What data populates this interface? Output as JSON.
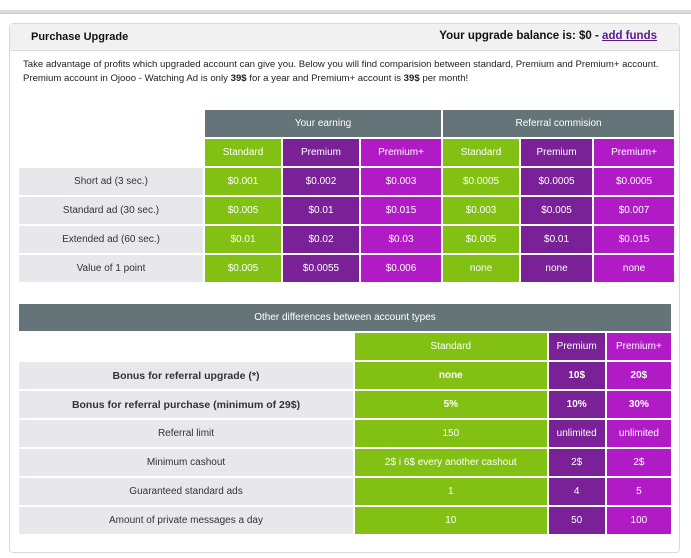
{
  "header": {
    "title": "Purchase Upgrade",
    "balance_label": "Your upgrade balance is: $0 -",
    "add_funds": "add funds"
  },
  "intro": {
    "text_a": "Take advantage of profits which upgraded account can give you. Below you will find comparision between standard, Premium and Premium+ account. Premium account in Ojooo - Watching Ad is only ",
    "price_premium": "39$",
    "text_b": " for a year and Premium+ account is ",
    "price_premium_plus": "39$",
    "text_c": " per month!"
  },
  "earnings_table": {
    "group_earning": "Your earning",
    "group_referral": "Referral commision",
    "columns": [
      "Standard",
      "Premium",
      "Premium+",
      "Standard",
      "Premium",
      "Premium+"
    ],
    "rows": [
      {
        "label": "Short ad (3 sec.)",
        "values": [
          "$0.001",
          "$0.002",
          "$0.003",
          "$0.0005",
          "$0.0005",
          "$0.0005"
        ]
      },
      {
        "label": "Standard ad (30 sec.)",
        "values": [
          "$0.005",
          "$0.01",
          "$0.015",
          "$0.003",
          "$0.005",
          "$0.007"
        ]
      },
      {
        "label": "Extended ad (60 sec.)",
        "values": [
          "$0.01",
          "$0.02",
          "$0.03",
          "$0.005",
          "$0.01",
          "$0.015"
        ]
      },
      {
        "label": "Value of 1 point",
        "values": [
          "$0.005",
          "$0.0055",
          "$0.006",
          "none",
          "none",
          "none"
        ]
      }
    ]
  },
  "differences_table": {
    "title": "Other differences between account types",
    "columns": [
      "Standard",
      "Premium",
      "Premium+"
    ],
    "rows": [
      {
        "label": "Bonus for referral upgrade (*)",
        "values": [
          "none",
          "10$",
          "20$"
        ]
      },
      {
        "label": "Bonus for referral purchase (minimum of 29$)",
        "values": [
          "5%",
          "10%",
          "30%"
        ]
      },
      {
        "label": "Referral limit",
        "values": [
          "150",
          "unlimited",
          "unlimited"
        ]
      },
      {
        "label": "Minimum cashout",
        "values": [
          "2$ i 6$ every another cashout",
          "2$",
          "2$"
        ]
      },
      {
        "label": "Guaranteed standard ads",
        "values": [
          "1",
          "4",
          "5"
        ]
      },
      {
        "label": "Amount of private messages a day",
        "values": [
          "10",
          "50",
          "100"
        ]
      }
    ]
  }
}
